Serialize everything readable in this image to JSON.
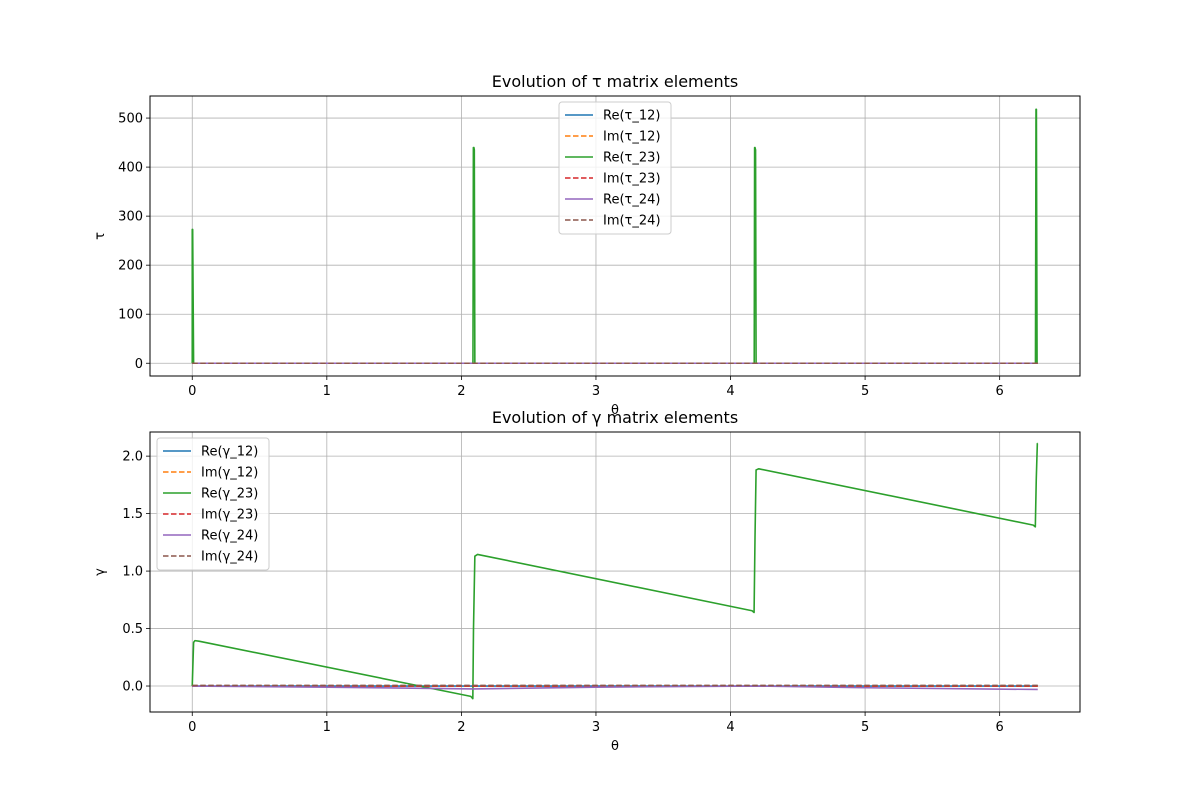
{
  "chart_data": [
    {
      "type": "line",
      "title": "Evolution of τ matrix elements",
      "xlabel": "θ",
      "ylabel": "τ",
      "xlim": [
        -0.314,
        6.597
      ],
      "ylim": [
        -26,
        545
      ],
      "xticks": [
        0,
        1,
        2,
        3,
        4,
        5,
        6
      ],
      "yticks": [
        0,
        100,
        200,
        300,
        400,
        500
      ],
      "grid": true,
      "legend_position": "upper center",
      "series": [
        {
          "name": "Re(τ_12)",
          "color": "#1f77b4",
          "dash": false,
          "x": [
            0,
            6.283
          ],
          "y": [
            0,
            0
          ]
        },
        {
          "name": "Im(τ_12)",
          "color": "#ff7f0e",
          "dash": true,
          "x": [
            0,
            6.283
          ],
          "y": [
            0,
            0
          ]
        },
        {
          "name": "Re(τ_23)",
          "color": "#2ca02c",
          "dash": false,
          "x": [
            0,
            0.0,
            0.003,
            0.01,
            2.086,
            2.089,
            2.093,
            2.096,
            2.1,
            4.176,
            4.179,
            4.182,
            4.186,
            4.19,
            6.266,
            6.27,
            6.273,
            6.278,
            6.283
          ],
          "y": [
            0,
            273,
            273,
            0,
            0,
            440,
            440,
            435,
            0,
            0,
            440,
            440,
            435,
            0,
            0,
            518,
            518,
            0,
            0
          ]
        },
        {
          "name": "Im(τ_23)",
          "color": "#d62728",
          "dash": true,
          "x": [
            0,
            6.283
          ],
          "y": [
            0,
            0
          ]
        },
        {
          "name": "Re(τ_24)",
          "color": "#9467bd",
          "dash": false,
          "x": [
            0,
            6.283
          ],
          "y": [
            0,
            0
          ]
        },
        {
          "name": "Im(τ_24)",
          "color": "#8c564b",
          "dash": true,
          "x": [
            0,
            6.283
          ],
          "y": [
            0,
            0
          ]
        }
      ]
    },
    {
      "type": "line",
      "title": "Evolution of γ matrix elements",
      "xlabel": "θ",
      "ylabel": "γ",
      "xlim": [
        -0.314,
        6.597
      ],
      "ylim": [
        -0.226,
        2.21
      ],
      "xticks": [
        0,
        1,
        2,
        3,
        4,
        5,
        6
      ],
      "yticks": [
        0.0,
        0.5,
        1.0,
        1.5,
        2.0
      ],
      "ytick_labels": [
        "0.0",
        "0.5",
        "1.0",
        "1.5",
        "2.0"
      ],
      "grid": true,
      "legend_position": "upper left",
      "series": [
        {
          "name": "Re(γ_12)",
          "color": "#1f77b4",
          "dash": false,
          "x": [
            0,
            6.283
          ],
          "y": [
            0,
            0
          ]
        },
        {
          "name": "Im(γ_12)",
          "color": "#ff7f0e",
          "dash": true,
          "x": [
            0,
            6.283
          ],
          "y": [
            0,
            0
          ]
        },
        {
          "name": "Re(γ_23)",
          "color": "#2ca02c",
          "dash": false,
          "x": [
            0,
            0.01,
            0.02,
            0.05,
            2.07,
            2.085,
            2.09,
            2.1,
            2.12,
            4.16,
            4.175,
            4.182,
            4.19,
            4.21,
            6.25,
            6.265,
            6.272,
            6.28,
            6.283
          ],
          "y": [
            0,
            0.38,
            0.395,
            0.39,
            -0.09,
            -0.11,
            0.5,
            1.13,
            1.145,
            0.655,
            0.64,
            1.3,
            1.88,
            1.89,
            1.4,
            1.385,
            1.8,
            2.11,
            2.11
          ]
        },
        {
          "name": "Im(γ_23)",
          "color": "#d62728",
          "dash": true,
          "x": [
            0,
            6.283
          ],
          "y": [
            0.0,
            0.0
          ]
        },
        {
          "name": "Re(γ_24)",
          "color": "#9467bd",
          "dash": false,
          "x": [
            0,
            1.0,
            2.09,
            3.0,
            4.18,
            5.0,
            6.283
          ],
          "y": [
            0,
            -0.01,
            -0.025,
            -0.01,
            0.0,
            -0.015,
            -0.03
          ]
        },
        {
          "name": "Im(γ_24)",
          "color": "#8c564b",
          "dash": true,
          "x": [
            0,
            6.283
          ],
          "y": [
            0.005,
            0.005
          ]
        }
      ]
    }
  ]
}
